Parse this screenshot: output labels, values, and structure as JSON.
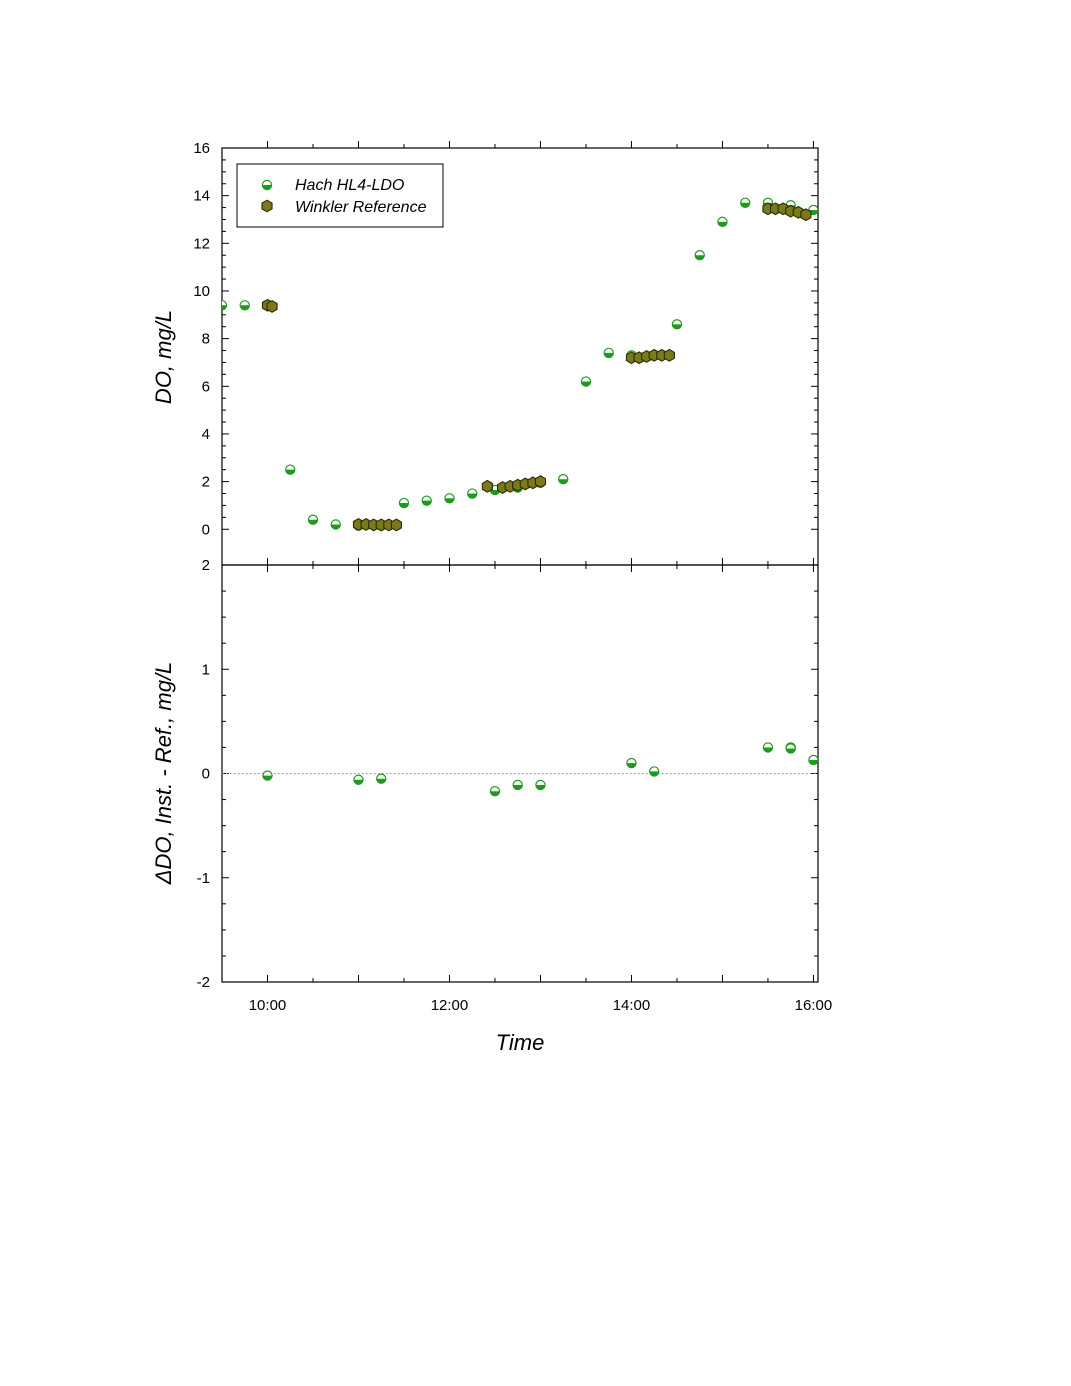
{
  "chart_data": [
    {
      "type": "scatter",
      "ylabel": "DO, mg/L",
      "ylim": [
        -1.5,
        16
      ],
      "xlim": [
        "09:30",
        "16:03"
      ],
      "yticks": [
        "0",
        "2",
        "4",
        "6",
        "8",
        "10",
        "12",
        "14",
        "16"
      ],
      "legend": {
        "position": "top-left"
      },
      "series": [
        {
          "name": "Hach HL4-LDO",
          "color": "#1e9a1e",
          "marker": "half-filled-circle",
          "points": [
            [
              "09:30",
              9.4
            ],
            [
              "09:45",
              9.4
            ],
            [
              "10:00",
              9.4
            ],
            [
              "10:15",
              2.5
            ],
            [
              "10:30",
              0.4
            ],
            [
              "10:45",
              0.2
            ],
            [
              "11:00",
              0.15
            ],
            [
              "11:15",
              0.15
            ],
            [
              "11:30",
              1.1
            ],
            [
              "11:45",
              1.2
            ],
            [
              "12:00",
              1.3
            ],
            [
              "12:15",
              1.5
            ],
            [
              "12:30",
              1.65
            ],
            [
              "12:45",
              1.75
            ],
            [
              "13:00",
              1.95
            ],
            [
              "13:15",
              2.1
            ],
            [
              "13:30",
              6.2
            ],
            [
              "13:45",
              7.4
            ],
            [
              "14:00",
              7.3
            ],
            [
              "14:15",
              7.3
            ],
            [
              "14:30",
              8.6
            ],
            [
              "14:45",
              11.5
            ],
            [
              "15:00",
              12.9
            ],
            [
              "15:15",
              13.7
            ],
            [
              "15:30",
              13.7
            ],
            [
              "15:45",
              13.6
            ],
            [
              "16:00",
              13.4
            ]
          ]
        },
        {
          "name": "Winkler Reference",
          "color": "#7a7a1c",
          "marker": "hexagon",
          "points": [
            [
              "10:00",
              9.4
            ],
            [
              "10:03",
              9.35
            ],
            [
              "11:00",
              0.2
            ],
            [
              "11:05",
              0.2
            ],
            [
              "11:10",
              0.18
            ],
            [
              "11:15",
              0.18
            ],
            [
              "11:20",
              0.18
            ],
            [
              "11:25",
              0.18
            ],
            [
              "12:25",
              1.8
            ],
            [
              "12:35",
              1.75
            ],
            [
              "12:40",
              1.8
            ],
            [
              "12:45",
              1.85
            ],
            [
              "12:50",
              1.9
            ],
            [
              "12:55",
              1.95
            ],
            [
              "13:00",
              2.0
            ],
            [
              "14:00",
              7.2
            ],
            [
              "14:05",
              7.2
            ],
            [
              "14:10",
              7.25
            ],
            [
              "14:15",
              7.3
            ],
            [
              "14:20",
              7.3
            ],
            [
              "14:25",
              7.3
            ],
            [
              "15:30",
              13.45
            ],
            [
              "15:35",
              13.45
            ],
            [
              "15:40",
              13.45
            ],
            [
              "15:45",
              13.35
            ],
            [
              "15:50",
              13.3
            ],
            [
              "15:55",
              13.2
            ]
          ]
        }
      ]
    },
    {
      "type": "scatter",
      "xlabel": "Time",
      "ylabel": "ΔDO, Inst. - Ref., mg/L",
      "ylim": [
        -2,
        2
      ],
      "xlim": [
        "09:30",
        "16:03"
      ],
      "yticks": [
        "-2",
        "-1",
        "0",
        "1",
        "2"
      ],
      "xticks": [
        "10:00",
        "12:00",
        "14:00",
        "16:00"
      ],
      "reference_line": 0,
      "series": [
        {
          "color": "#1e9a1e",
          "marker": "half-filled-circle",
          "points": [
            [
              "10:00",
              -0.02
            ],
            [
              "11:00",
              -0.06
            ],
            [
              "11:15",
              -0.05
            ],
            [
              "12:30",
              -0.17
            ],
            [
              "12:45",
              -0.11
            ],
            [
              "13:00",
              -0.11
            ],
            [
              "14:00",
              0.1
            ],
            [
              "14:15",
              0.02
            ],
            [
              "15:30",
              0.25
            ],
            [
              "15:45",
              0.25
            ],
            [
              "15:45",
              0.24
            ],
            [
              "16:00",
              0.13
            ]
          ]
        }
      ]
    }
  ]
}
